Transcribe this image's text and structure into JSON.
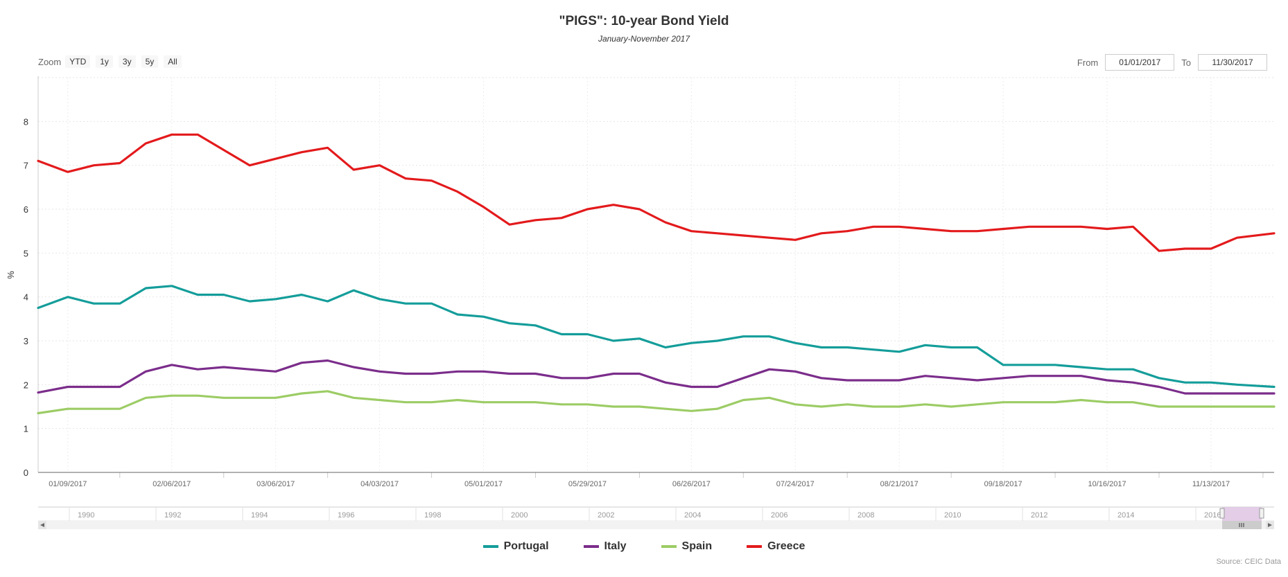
{
  "title": "\"PIGS\": 10-year Bond Yield",
  "subtitle": "January-November 2017",
  "zoom": {
    "label": "Zoom",
    "buttons": [
      "YTD",
      "1y",
      "3y",
      "5y",
      "All"
    ]
  },
  "range": {
    "from_label": "From",
    "from_value": "01/01/2017",
    "to_label": "To",
    "to_value": "11/30/2017"
  },
  "source": "Source: CEIC Data",
  "colors": {
    "Portugal": "#149d9a",
    "Italy": "#7b2d8b",
    "Spain": "#9ccc65",
    "Greece": "#e31a1c"
  },
  "navigator_labels": [
    "1990",
    "1992",
    "1994",
    "1996",
    "1998",
    "2000",
    "2002",
    "2004",
    "2006",
    "2008",
    "2010",
    "2012",
    "2014",
    "2016"
  ],
  "chart_data": {
    "type": "line",
    "title": "\"PIGS\": 10-year Bond Yield",
    "subtitle": "January-November 2017",
    "xlabel": "",
    "ylabel": "%",
    "ylim": [
      0,
      9
    ],
    "yticks": [
      0,
      1,
      2,
      3,
      4,
      5,
      6,
      7,
      8
    ],
    "x_tick_labels": [
      "01/09/2017",
      "02/06/2017",
      "03/06/2017",
      "04/03/2017",
      "05/01/2017",
      "05/29/2017",
      "06/26/2017",
      "07/24/2017",
      "08/21/2017",
      "09/18/2017",
      "10/16/2017",
      "11/13/2017"
    ],
    "x_tick_dates": [
      "2017-01-09",
      "2017-02-06",
      "2017-03-06",
      "2017-04-03",
      "2017-05-01",
      "2017-05-29",
      "2017-06-26",
      "2017-07-24",
      "2017-08-21",
      "2017-09-18",
      "2017-10-16",
      "2017-11-13"
    ],
    "xlim": [
      "2017-01-01",
      "2017-11-30"
    ],
    "legend_position": "bottom-center",
    "grid": true,
    "x": [
      "2017-01-01",
      "2017-01-09",
      "2017-01-16",
      "2017-01-23",
      "2017-01-30",
      "2017-02-06",
      "2017-02-13",
      "2017-02-20",
      "2017-02-27",
      "2017-03-06",
      "2017-03-13",
      "2017-03-20",
      "2017-03-27",
      "2017-04-03",
      "2017-04-10",
      "2017-04-17",
      "2017-04-24",
      "2017-05-01",
      "2017-05-08",
      "2017-05-15",
      "2017-05-22",
      "2017-05-29",
      "2017-06-05",
      "2017-06-12",
      "2017-06-19",
      "2017-06-26",
      "2017-07-03",
      "2017-07-10",
      "2017-07-17",
      "2017-07-24",
      "2017-07-31",
      "2017-08-07",
      "2017-08-14",
      "2017-08-21",
      "2017-08-28",
      "2017-09-04",
      "2017-09-11",
      "2017-09-18",
      "2017-09-25",
      "2017-10-02",
      "2017-10-09",
      "2017-10-16",
      "2017-10-23",
      "2017-10-30",
      "2017-11-06",
      "2017-11-13",
      "2017-11-20",
      "2017-11-30"
    ],
    "series": [
      {
        "name": "Portugal",
        "values": [
          3.75,
          4.0,
          3.85,
          3.85,
          4.2,
          4.25,
          4.05,
          4.05,
          3.9,
          3.95,
          4.05,
          3.9,
          4.15,
          3.95,
          3.85,
          3.85,
          3.6,
          3.55,
          3.4,
          3.35,
          3.15,
          3.15,
          3.0,
          3.05,
          2.85,
          2.95,
          3.0,
          3.1,
          3.1,
          2.95,
          2.85,
          2.85,
          2.8,
          2.75,
          2.9,
          2.85,
          2.85,
          2.45,
          2.45,
          2.45,
          2.4,
          2.35,
          2.35,
          2.15,
          2.05,
          2.05,
          2.0,
          1.95
        ]
      },
      {
        "name": "Italy",
        "values": [
          1.82,
          1.95,
          1.95,
          1.95,
          2.3,
          2.45,
          2.35,
          2.4,
          2.35,
          2.3,
          2.5,
          2.55,
          2.4,
          2.3,
          2.25,
          2.25,
          2.3,
          2.3,
          2.25,
          2.25,
          2.15,
          2.15,
          2.25,
          2.25,
          2.05,
          1.95,
          1.95,
          2.15,
          2.35,
          2.3,
          2.15,
          2.1,
          2.1,
          2.1,
          2.2,
          2.15,
          2.1,
          2.15,
          2.2,
          2.2,
          2.2,
          2.1,
          2.05,
          1.95,
          1.8,
          1.8,
          1.8,
          1.8
        ]
      },
      {
        "name": "Spain",
        "values": [
          1.35,
          1.45,
          1.45,
          1.45,
          1.7,
          1.75,
          1.75,
          1.7,
          1.7,
          1.7,
          1.8,
          1.85,
          1.7,
          1.65,
          1.6,
          1.6,
          1.65,
          1.6,
          1.6,
          1.6,
          1.55,
          1.55,
          1.5,
          1.5,
          1.45,
          1.4,
          1.45,
          1.65,
          1.7,
          1.55,
          1.5,
          1.55,
          1.5,
          1.5,
          1.55,
          1.5,
          1.55,
          1.6,
          1.6,
          1.6,
          1.65,
          1.6,
          1.6,
          1.5,
          1.5,
          1.5,
          1.5,
          1.5
        ]
      },
      {
        "name": "Greece",
        "values": [
          7.1,
          6.85,
          7.0,
          7.05,
          7.5,
          7.7,
          7.7,
          7.35,
          7.0,
          7.15,
          7.3,
          7.4,
          6.9,
          7.0,
          6.7,
          6.65,
          6.4,
          6.05,
          5.65,
          5.75,
          5.8,
          6.0,
          6.1,
          6.0,
          5.7,
          5.5,
          5.45,
          5.4,
          5.35,
          5.3,
          5.45,
          5.5,
          5.6,
          5.6,
          5.55,
          5.5,
          5.5,
          5.55,
          5.6,
          5.6,
          5.6,
          5.55,
          5.6,
          5.05,
          5.1,
          5.1,
          5.35,
          5.45
        ]
      }
    ]
  }
}
